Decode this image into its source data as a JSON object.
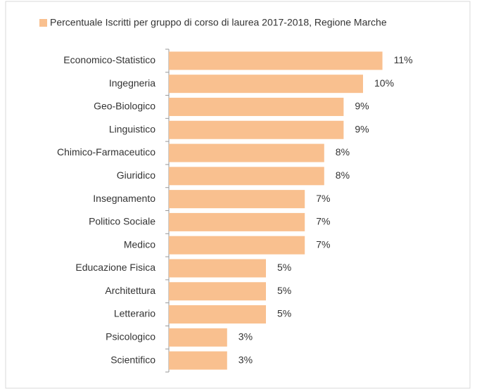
{
  "chart_data": {
    "type": "bar",
    "orientation": "horizontal",
    "legend": "top",
    "series": [
      {
        "name": "Percentuale Iscritti per gruppo di corso di laurea 2017-2018, Regione Marche",
        "color": "#f9c08f",
        "values": [
          11,
          10,
          9,
          9,
          8,
          8,
          7,
          7,
          7,
          5,
          5,
          5,
          3,
          3
        ],
        "value_labels": [
          "11%",
          "10%",
          "9%",
          "9%",
          "8%",
          "8%",
          "7%",
          "7%",
          "7%",
          "5%",
          "5%",
          "5%",
          "3%",
          "3%"
        ]
      }
    ],
    "categories": [
      "Economico-Statistico",
      "Ingegneria",
      "Geo-Biologico",
      "Linguistico",
      "Chimico-Farmaceutico",
      "Giuridico",
      "Insegnamento",
      "Politico Sociale",
      "Medico",
      "Educazione Fisica",
      "Architettura",
      "Letterario",
      "Psicologico",
      "Scientifico"
    ]
  }
}
